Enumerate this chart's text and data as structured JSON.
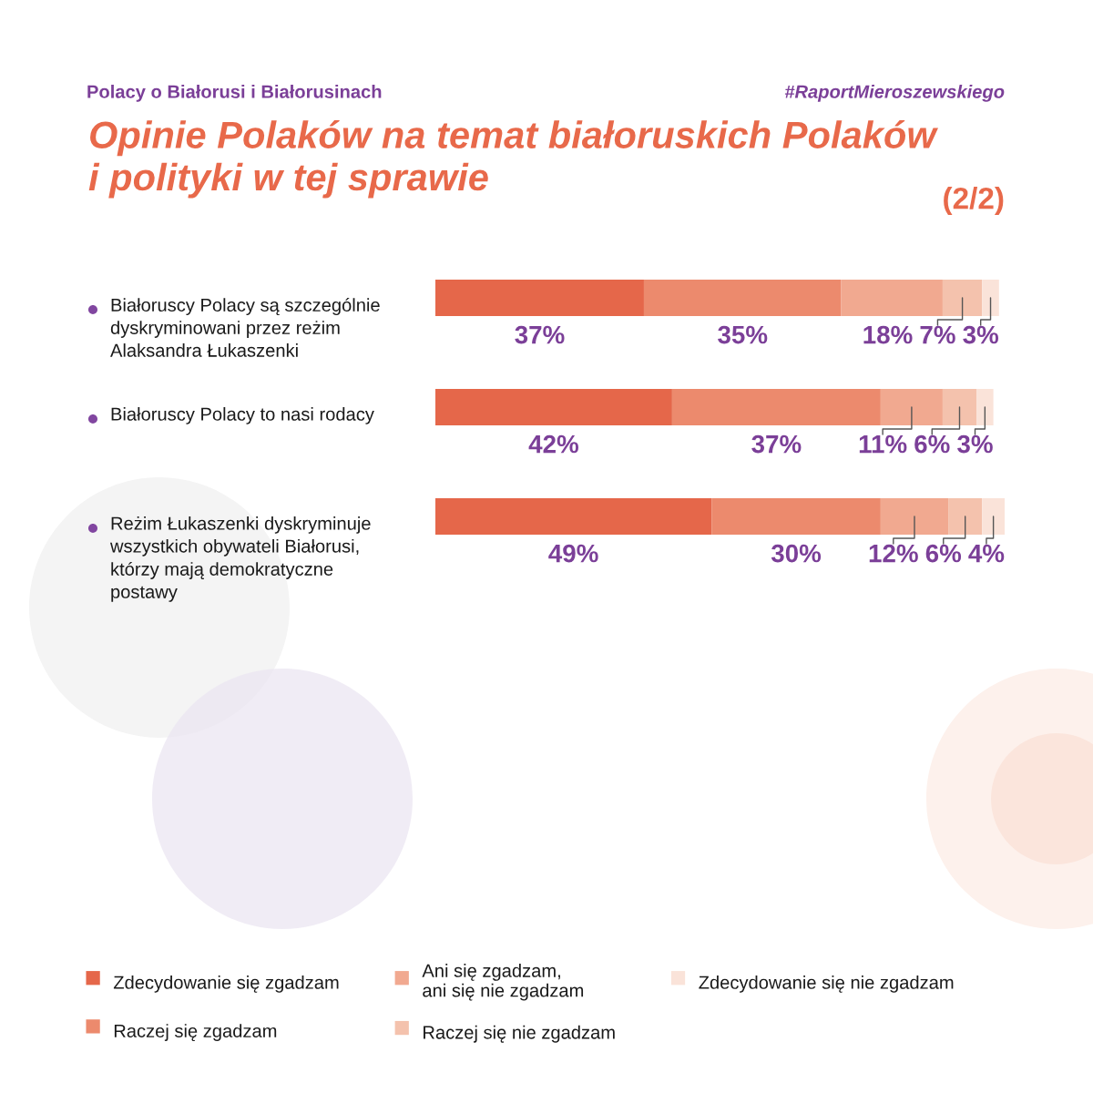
{
  "chart_data": {
    "type": "bar",
    "orientation": "horizontal",
    "stacked": true,
    "title": "Opinie Polaków na temat białoruskich Polaków\ni polityki w tej sprawie",
    "subtitle": "Polacy o Białorusi i Białorusinach",
    "annotations": [
      "#RaportMieroszewskiego",
      "(2/2)"
    ],
    "categories": [
      "Białoruscy Polacy są szczególnie\ndyskryminowani przez reżim\nAlaksandra Łukaszenki",
      "Białoruscy Polacy to nasi rodacy",
      "Reżim Łukaszenki dyskryminuje\nwszystkich obywateli Białorusi,\nktórzy mają demokratyczne\npostawy"
    ],
    "series": [
      {
        "name": "Zdecydowanie się zgadzam",
        "color": "#e5674a",
        "values": [
          37,
          42,
          49
        ],
        "value_labels": [
          "37%",
          "42%",
          "49%"
        ]
      },
      {
        "name": "Raczej się zgadzam",
        "color": "#ec8a6d",
        "values": [
          35,
          37,
          30
        ],
        "value_labels": [
          "35%",
          "37%",
          "30%"
        ]
      },
      {
        "name": "Ani się zgadzam,\nani się nie zgadzam",
        "color": "#f1a990",
        "values": [
          18,
          11,
          12
        ],
        "value_labels": [
          "18%",
          "11%",
          "12%"
        ]
      },
      {
        "name": "Raczej się nie zgadzam",
        "color": "#f4c2ad",
        "values": [
          7,
          6,
          6
        ],
        "value_labels": [
          "7%",
          "6%",
          "6%"
        ]
      },
      {
        "name": "Zdecydowanie się nie zgadzam",
        "color": "#fae3d9",
        "values": [
          3,
          3,
          4
        ],
        "value_labels": [
          "3%",
          "3%",
          "4%"
        ]
      }
    ],
    "tick_labels": "y",
    "legend": "bottom"
  }
}
